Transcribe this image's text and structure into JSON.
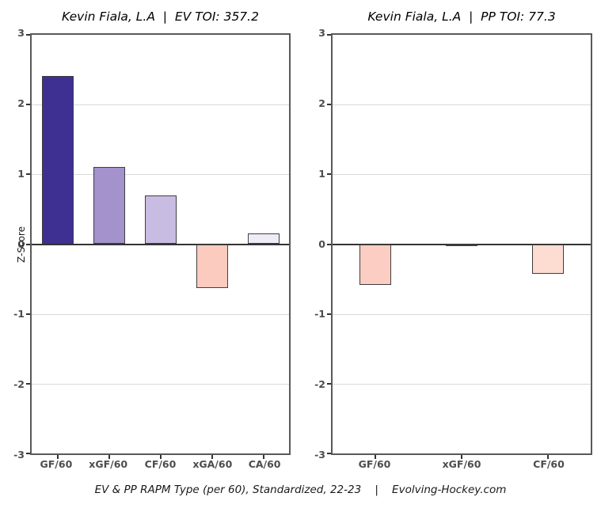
{
  "caption": "EV & PP RAPM Type (per 60), Standardized, 22-23    |    Evolving-Hockey.com",
  "colors": {
    "background": "#ffffff",
    "panel_border": "#595959",
    "gridline": "#d9d9d9",
    "zero_line": "#333333",
    "bar_border": "#3f3f3f",
    "axis_text": "#4d4d4d",
    "title_text": "#000000"
  },
  "chart_data": [
    {
      "type": "bar",
      "title": "Kevin Fiala, L.A  |  EV TOI: 357.2",
      "ylabel": "Z-Score",
      "categories": [
        "GF/60",
        "xGF/60",
        "CF/60",
        "xGA/60",
        "CA/60"
      ],
      "values": [
        2.41,
        1.11,
        0.7,
        -0.63,
        0.15
      ],
      "bar_colors": [
        "#3e3093",
        "#a392cc",
        "#c9bce3",
        "#fbcbc0",
        "#efecf8"
      ],
      "ylim": [
        -3,
        3
      ],
      "yticks": [
        3,
        2,
        1,
        0,
        -1,
        -2,
        -3
      ],
      "grid": true,
      "legend": "none"
    },
    {
      "type": "bar",
      "title": "Kevin Fiala, L.A  |  PP TOI: 77.3",
      "ylabel": "",
      "categories": [
        "GF/60",
        "xGF/60",
        "CF/60"
      ],
      "values": [
        -0.58,
        -0.01,
        -0.43
      ],
      "bar_colors": [
        "#fccdc3",
        "#fddcd2",
        "#fddcd2"
      ],
      "ylim": [
        -3,
        3
      ],
      "yticks": [
        3,
        2,
        1,
        0,
        -1,
        -2,
        -3
      ],
      "grid": true,
      "legend": "none"
    }
  ]
}
